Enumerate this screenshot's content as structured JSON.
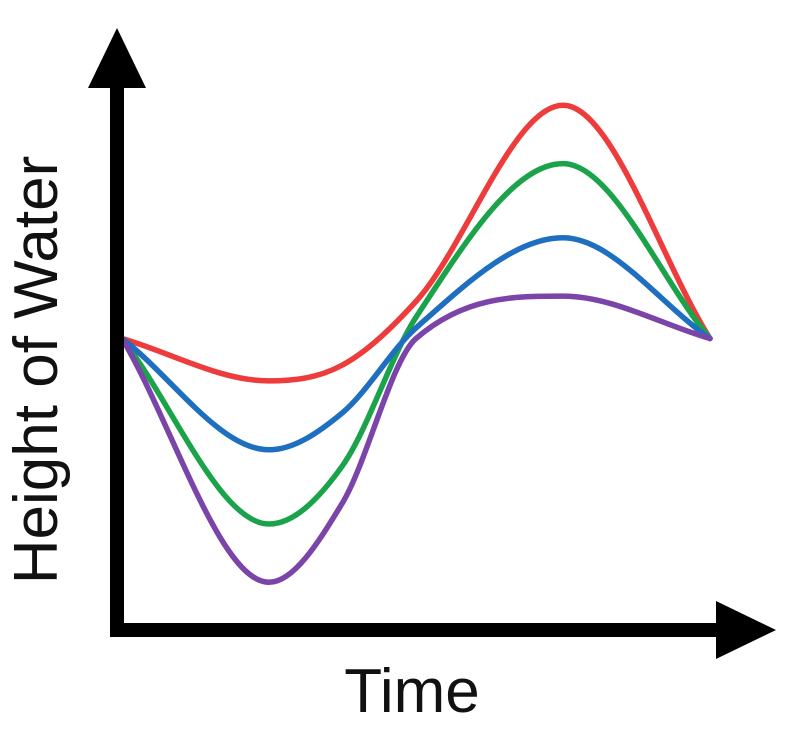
{
  "chart_data": {
    "type": "line",
    "title": "",
    "xlabel": "Time",
    "ylabel": "Height of Water",
    "xlim": [
      0,
      1
    ],
    "ylim": [
      0,
      1
    ],
    "grid": false,
    "legend": "none",
    "ticks": false,
    "axis_color": "#000000",
    "x": [
      0,
      0.25,
      0.375,
      0.5,
      0.75,
      1
    ],
    "series": [
      {
        "color": "#ee3b3b",
        "values": [
          0.55,
          0.47,
          0.5,
          0.62,
          0.99,
          0.55
        ]
      },
      {
        "color": "#1aa34a",
        "values": [
          0.55,
          0.2,
          0.31,
          0.59,
          0.88,
          0.55
        ]
      },
      {
        "color": "#1e6fbf",
        "values": [
          0.55,
          0.34,
          0.41,
          0.57,
          0.74,
          0.55
        ]
      },
      {
        "color": "#7b44a8",
        "values": [
          0.55,
          0.09,
          0.24,
          0.55,
          0.63,
          0.55
        ]
      }
    ]
  }
}
